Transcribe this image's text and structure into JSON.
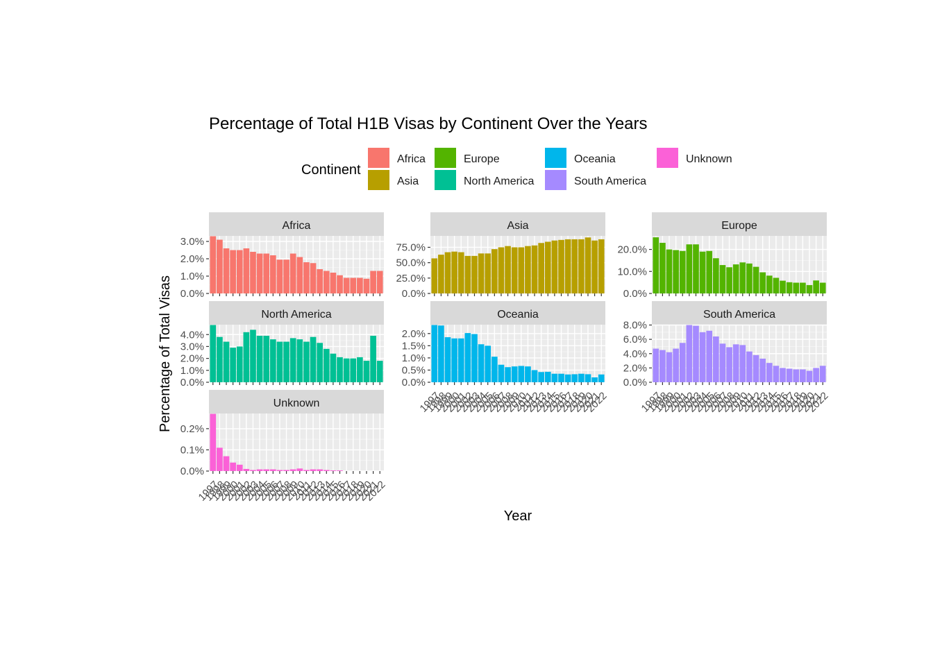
{
  "chart_data": {
    "type": "bar",
    "title": "Percentage of Total H1B Visas by Continent Over the Years",
    "xlabel": "Year",
    "ylabel": "Percentage of Total Visas",
    "legend": {
      "title": "Continent",
      "placement": "top",
      "entries": [
        {
          "name": "Africa",
          "color": "#F8766D"
        },
        {
          "name": "Asia",
          "color": "#B79F00"
        },
        {
          "name": "Europe",
          "color": "#53B400"
        },
        {
          "name": "North America",
          "color": "#00C094"
        },
        {
          "name": "Oceania",
          "color": "#00B6EB"
        },
        {
          "name": "South America",
          "color": "#A58AFF"
        },
        {
          "name": "Unknown",
          "color": "#FB61D7"
        }
      ]
    },
    "x": [
      1997,
      1998,
      1999,
      2000,
      2001,
      2002,
      2003,
      2004,
      2005,
      2006,
      2007,
      2008,
      2009,
      2010,
      2011,
      2012,
      2013,
      2014,
      2015,
      2016,
      2017,
      2018,
      2019,
      2020,
      2021,
      2022
    ],
    "facets": [
      {
        "name": "Africa",
        "color": "#F8766D",
        "ylim": [
          0,
          3.3
        ],
        "yticks": [
          0,
          1,
          2,
          3
        ],
        "ytick_labels": [
          "0.0%",
          "1.0%",
          "2.0%",
          "3.0%"
        ],
        "values": [
          3.3,
          3.1,
          2.6,
          2.5,
          2.5,
          2.6,
          2.4,
          2.3,
          2.3,
          2.2,
          1.95,
          1.95,
          2.3,
          2.1,
          1.8,
          1.75,
          1.4,
          1.3,
          1.2,
          1.05,
          0.9,
          0.9,
          0.9,
          0.85,
          1.3,
          1.3
        ]
      },
      {
        "name": "Asia",
        "color": "#B79F00",
        "ylim": [
          0,
          93
        ],
        "yticks": [
          0,
          25,
          50,
          75
        ],
        "ytick_labels": [
          "0.0%",
          "25.0%",
          "50.0%",
          "75.0%"
        ],
        "values": [
          57,
          63,
          67,
          68,
          67,
          61,
          61,
          65,
          65,
          72,
          75,
          77,
          75,
          75,
          77,
          78,
          82,
          84,
          86,
          87,
          88,
          88,
          88,
          91,
          86,
          88
        ]
      },
      {
        "name": "Europe",
        "color": "#53B400",
        "ylim": [
          0,
          26
        ],
        "yticks": [
          0,
          10,
          20
        ],
        "ytick_labels": [
          "0.0%",
          "10.0%",
          "20.0%"
        ],
        "values": [
          25.5,
          23,
          20,
          19.7,
          19.3,
          22.3,
          22.3,
          19,
          19.3,
          16,
          12.9,
          11.9,
          13.2,
          14.1,
          13.6,
          12.1,
          9.6,
          8.1,
          7.1,
          5.8,
          5.1,
          4.9,
          4.9,
          3.8,
          5.9,
          4.9
        ]
      },
      {
        "name": "North America",
        "color": "#00C094",
        "ylim": [
          0,
          4.8
        ],
        "yticks": [
          0,
          1,
          2,
          3,
          4
        ],
        "ytick_labels": [
          "0.0%",
          "1.0%",
          "2.0%",
          "3.0%",
          "4.0%"
        ],
        "values": [
          4.8,
          3.8,
          3.4,
          2.9,
          3.0,
          4.2,
          4.4,
          3.9,
          3.9,
          3.6,
          3.4,
          3.4,
          3.7,
          3.6,
          3.4,
          3.8,
          3.3,
          2.8,
          2.4,
          2.1,
          2.0,
          2.0,
          2.1,
          1.8,
          3.9,
          1.8
        ]
      },
      {
        "name": "Oceania",
        "color": "#00B6EB",
        "ylim": [
          0,
          2.35
        ],
        "yticks": [
          0,
          0.5,
          1.0,
          1.5,
          2.0
        ],
        "ytick_labels": [
          "0.0%",
          "0.5%",
          "1.0%",
          "1.5%",
          "2.0%"
        ],
        "values": [
          2.35,
          2.33,
          1.85,
          1.8,
          1.8,
          2.02,
          1.98,
          1.56,
          1.5,
          1.05,
          0.72,
          0.62,
          0.65,
          0.67,
          0.65,
          0.5,
          0.42,
          0.43,
          0.35,
          0.35,
          0.32,
          0.33,
          0.35,
          0.33,
          0.2,
          0.32
        ]
      },
      {
        "name": "South America",
        "color": "#A58AFF",
        "ylim": [
          0,
          8
        ],
        "yticks": [
          0,
          2,
          4,
          6,
          8
        ],
        "ytick_labels": [
          "0.0%",
          "2.0%",
          "4.0%",
          "6.0%",
          "8.0%"
        ],
        "values": [
          4.7,
          4.5,
          4.2,
          4.7,
          5.5,
          8.0,
          7.9,
          7.0,
          7.2,
          6.4,
          5.4,
          4.9,
          5.3,
          5.2,
          4.3,
          3.8,
          3.3,
          2.7,
          2.3,
          2.0,
          1.9,
          1.8,
          1.8,
          1.6,
          2.0,
          2.3
        ]
      },
      {
        "name": "Unknown",
        "color": "#FB61D7",
        "ylim": [
          0,
          0.27
        ],
        "yticks": [
          0,
          0.1,
          0.2
        ],
        "ytick_labels": [
          "0.0%",
          "0.1%",
          "0.2%"
        ],
        "values": [
          0.27,
          0.11,
          0.07,
          0.04,
          0.03,
          0.01,
          0.005,
          0.008,
          0.008,
          0.008,
          0.005,
          0.005,
          0.008,
          0.012,
          0.005,
          0.008,
          0.008,
          0.005,
          0.003,
          0.003,
          0.0,
          0.0,
          0.0,
          0.0,
          0.0,
          0.0
        ]
      }
    ]
  }
}
